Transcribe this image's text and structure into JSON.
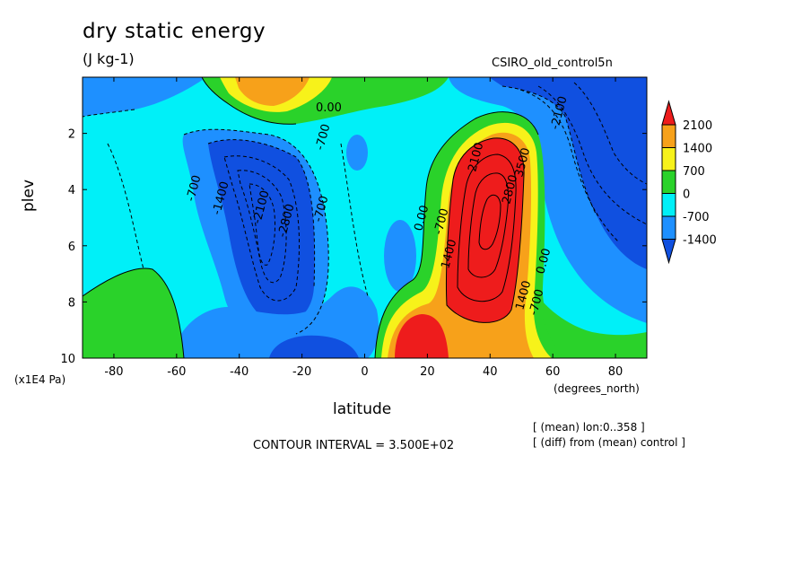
{
  "chart_data": {
    "type": "heatmap",
    "title": "dry static energy",
    "units": "(J kg-1)",
    "dataset": "CSIRO_old_control5n",
    "xlabel": "latitude",
    "xunit": "(degrees_north)",
    "ylabel": "plev",
    "yunit": "(x1E4 Pa)",
    "xlim": [
      -90,
      90
    ],
    "ylim": [
      10,
      0
    ],
    "x_ticks": [
      "-80",
      "-60",
      "-40",
      "-20",
      "0",
      "20",
      "40",
      "60",
      "80"
    ],
    "y_ticks": [
      "2",
      "4",
      "6",
      "8",
      "10"
    ],
    "contour_interval": "CONTOUR INTERVAL = 3.500E+02",
    "notes": [
      "[ (mean) lon:0..358 ]",
      "[ (diff) from (mean) control ]"
    ],
    "colorbar": {
      "levels": [
        "2100",
        "1400",
        "700",
        "0",
        "-700",
        "-1400"
      ],
      "colors": [
        "#ee1c1c",
        "#f7a11a",
        "#f7f21a",
        "#2ad22a",
        "#00f0f8",
        "#1e90ff",
        "#1050e0"
      ]
    },
    "contour_labels": [
      "0.00",
      "-700",
      "-700",
      "-1400",
      "-2100",
      "-2800",
      "-700",
      "0.00",
      "-700",
      "1400",
      "2100",
      "2800",
      "3500",
      "1400",
      "0.00",
      "-700",
      "-2100"
    ],
    "features": [
      {
        "name": "positive maximum",
        "lat": 42,
        "plev": 4.2,
        "value": 3500
      },
      {
        "name": "negative minimum",
        "lat": -33,
        "plev": 5.2,
        "value": -2800
      },
      {
        "name": "lower positive lobe",
        "lat": 18,
        "plev": 9.3,
        "value": 2100
      },
      {
        "name": "upper positive lobe",
        "lat": -38,
        "plev": 0.6,
        "value": 1400
      }
    ]
  }
}
